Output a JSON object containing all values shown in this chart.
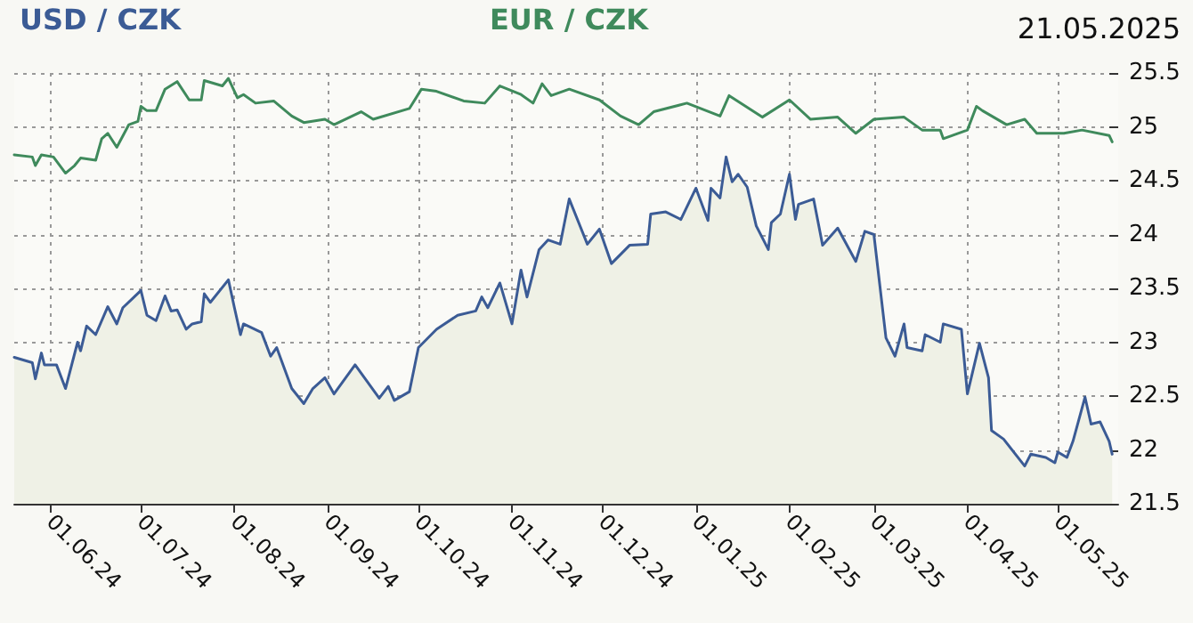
{
  "chart_data": {
    "type": "line",
    "title": "21.05.2025",
    "xlim": [
      "2024-05-20",
      "2025-05-21"
    ],
    "xticks": [
      {
        "value": "2024-06-01",
        "label": "01.06.24"
      },
      {
        "value": "2024-07-01",
        "label": "01.07.24"
      },
      {
        "value": "2024-08-01",
        "label": "01.08.24"
      },
      {
        "value": "2024-09-01",
        "label": "01.09.24"
      },
      {
        "value": "2024-10-01",
        "label": "01.10.24"
      },
      {
        "value": "2024-11-01",
        "label": "01.11.24"
      },
      {
        "value": "2024-12-01",
        "label": "01.12.24"
      },
      {
        "value": "2025-01-01",
        "label": "01.01.25"
      },
      {
        "value": "2025-02-01",
        "label": "01.02.25"
      },
      {
        "value": "2025-03-01",
        "label": "01.03.25"
      },
      {
        "value": "2025-04-01",
        "label": "01.04.25"
      },
      {
        "value": "2025-05-01",
        "label": "01.05.25"
      }
    ],
    "ylim": [
      21.5,
      25.5
    ],
    "yticks": [
      21.5,
      22,
      22.5,
      23,
      23.5,
      24,
      24.5,
      25,
      25.5
    ],
    "grid": true,
    "legend": "top",
    "marker": "none",
    "line_style": "solid",
    "series": [
      {
        "name": "USD / CZK",
        "type": "area",
        "color": "#3b5b95",
        "x": [
          "2024-05-20",
          "2024-05-26",
          "2024-05-27",
          "2024-05-29",
          "2024-05-30",
          "2024-06-03",
          "2024-06-06",
          "2024-06-10",
          "2024-06-11",
          "2024-06-13",
          "2024-06-16",
          "2024-06-20",
          "2024-06-23",
          "2024-06-25",
          "2024-06-28",
          "2024-07-01",
          "2024-07-03",
          "2024-07-06",
          "2024-07-09",
          "2024-07-11",
          "2024-07-13",
          "2024-07-16",
          "2024-07-18",
          "2024-07-21",
          "2024-07-22",
          "2024-07-24",
          "2024-07-30",
          "2024-08-01",
          "2024-08-03",
          "2024-08-04",
          "2024-08-10",
          "2024-08-13",
          "2024-08-15",
          "2024-08-20",
          "2024-08-24",
          "2024-08-27",
          "2024-08-31",
          "2024-09-03",
          "2024-09-10",
          "2024-09-18",
          "2024-09-21",
          "2024-09-23",
          "2024-09-28",
          "2024-10-01",
          "2024-10-07",
          "2024-10-14",
          "2024-10-20",
          "2024-10-22",
          "2024-10-24",
          "2024-10-28",
          "2024-11-01",
          "2024-11-04",
          "2024-11-06",
          "2024-11-10",
          "2024-11-13",
          "2024-11-17",
          "2024-11-20",
          "2024-11-26",
          "2024-11-30",
          "2024-12-04",
          "2024-12-10",
          "2024-12-16",
          "2024-12-17",
          "2024-12-22",
          "2024-12-27",
          "2025-01-01",
          "2025-01-05",
          "2025-01-06",
          "2025-01-09",
          "2025-01-11",
          "2025-01-13",
          "2025-01-15",
          "2025-01-18",
          "2025-01-21",
          "2025-01-25",
          "2025-01-26",
          "2025-01-29",
          "2025-02-01",
          "2025-02-03",
          "2025-02-04",
          "2025-02-09",
          "2025-02-12",
          "2025-02-17",
          "2025-02-23",
          "2025-02-26",
          "2025-03-01",
          "2025-03-05",
          "2025-03-08",
          "2025-03-11",
          "2025-03-12",
          "2025-03-17",
          "2025-03-18",
          "2025-03-23",
          "2025-03-24",
          "2025-03-30",
          "2025-04-01",
          "2025-04-05",
          "2025-04-08",
          "2025-04-09",
          "2025-04-13",
          "2025-04-20",
          "2025-04-22",
          "2025-04-27",
          "2025-04-30",
          "2025-05-01",
          "2025-05-04",
          "2025-05-06",
          "2025-05-10",
          "2025-05-12",
          "2025-05-15",
          "2025-05-18",
          "2025-05-19"
        ],
        "values": [
          22.86,
          22.81,
          22.66,
          22.9,
          22.79,
          22.79,
          22.57,
          23.0,
          22.92,
          23.15,
          23.07,
          23.33,
          23.17,
          23.32,
          23.4,
          23.48,
          23.25,
          23.2,
          23.43,
          23.29,
          23.3,
          23.12,
          23.17,
          23.19,
          23.45,
          23.37,
          23.58,
          23.32,
          23.07,
          23.17,
          23.09,
          22.87,
          22.95,
          22.57,
          22.43,
          22.57,
          22.67,
          22.52,
          22.79,
          22.48,
          22.59,
          22.46,
          22.54,
          22.95,
          23.12,
          23.25,
          23.29,
          23.42,
          23.32,
          23.55,
          23.17,
          23.67,
          23.42,
          23.86,
          23.95,
          23.91,
          24.33,
          23.91,
          24.05,
          23.73,
          23.9,
          23.91,
          24.19,
          24.21,
          24.14,
          24.43,
          24.13,
          24.43,
          24.34,
          24.72,
          24.49,
          24.56,
          24.44,
          24.08,
          23.86,
          24.11,
          24.19,
          24.56,
          24.14,
          24.28,
          24.33,
          23.9,
          24.06,
          23.75,
          24.03,
          24.0,
          23.04,
          22.87,
          23.17,
          22.95,
          22.92,
          23.07,
          23.0,
          23.17,
          23.12,
          22.52,
          22.99,
          22.67,
          22.18,
          22.1,
          21.85,
          21.96,
          21.93,
          21.88,
          21.98,
          21.93,
          22.08,
          22.49,
          22.24,
          22.26,
          22.08,
          21.96
        ]
      },
      {
        "name": "EUR / CZK",
        "color": "#3f8a5c",
        "x": [
          "2024-05-20",
          "2024-05-26",
          "2024-05-27",
          "2024-05-29",
          "2024-06-02",
          "2024-06-06",
          "2024-06-09",
          "2024-06-11",
          "2024-06-16",
          "2024-06-18",
          "2024-06-20",
          "2024-06-23",
          "2024-06-27",
          "2024-06-30",
          "2024-07-01",
          "2024-07-03",
          "2024-07-06",
          "2024-07-09",
          "2024-07-13",
          "2024-07-17",
          "2024-07-21",
          "2024-07-22",
          "2024-07-28",
          "2024-07-30",
          "2024-08-02",
          "2024-08-04",
          "2024-08-08",
          "2024-08-14",
          "2024-08-20",
          "2024-08-24",
          "2024-08-31",
          "2024-09-03",
          "2024-09-12",
          "2024-09-16",
          "2024-09-28",
          "2024-10-02",
          "2024-10-07",
          "2024-10-16",
          "2024-10-23",
          "2024-10-28",
          "2024-11-04",
          "2024-11-08",
          "2024-11-11",
          "2024-11-14",
          "2024-11-20",
          "2024-11-30",
          "2024-12-07",
          "2024-12-13",
          "2024-12-18",
          "2024-12-29",
          "2025-01-09",
          "2025-01-12",
          "2025-01-23",
          "2025-02-01",
          "2025-02-08",
          "2025-02-17",
          "2025-02-23",
          "2025-03-01",
          "2025-03-11",
          "2025-03-17",
          "2025-03-23",
          "2025-03-24",
          "2025-04-01",
          "2025-04-04",
          "2025-04-06",
          "2025-04-14",
          "2025-04-20",
          "2025-04-24",
          "2025-05-03",
          "2025-05-09",
          "2025-05-18",
          "2025-05-19"
        ],
        "values": [
          24.74,
          24.72,
          24.64,
          24.74,
          24.72,
          24.57,
          24.64,
          24.71,
          24.69,
          24.89,
          24.94,
          24.81,
          25.02,
          25.05,
          25.19,
          25.15,
          25.15,
          25.35,
          25.42,
          25.25,
          25.25,
          25.43,
          25.38,
          25.45,
          25.27,
          25.3,
          25.22,
          25.24,
          25.1,
          25.04,
          25.07,
          25.02,
          25.14,
          25.07,
          25.17,
          25.35,
          25.33,
          25.24,
          25.22,
          25.38,
          25.3,
          25.22,
          25.4,
          25.29,
          25.35,
          25.25,
          25.1,
          25.02,
          25.14,
          25.22,
          25.1,
          25.29,
          25.09,
          25.25,
          25.07,
          25.09,
          24.94,
          25.07,
          25.09,
          24.97,
          24.97,
          24.89,
          24.97,
          25.19,
          25.15,
          25.02,
          25.07,
          24.94,
          24.94,
          24.97,
          24.92,
          24.86
        ]
      }
    ]
  }
}
